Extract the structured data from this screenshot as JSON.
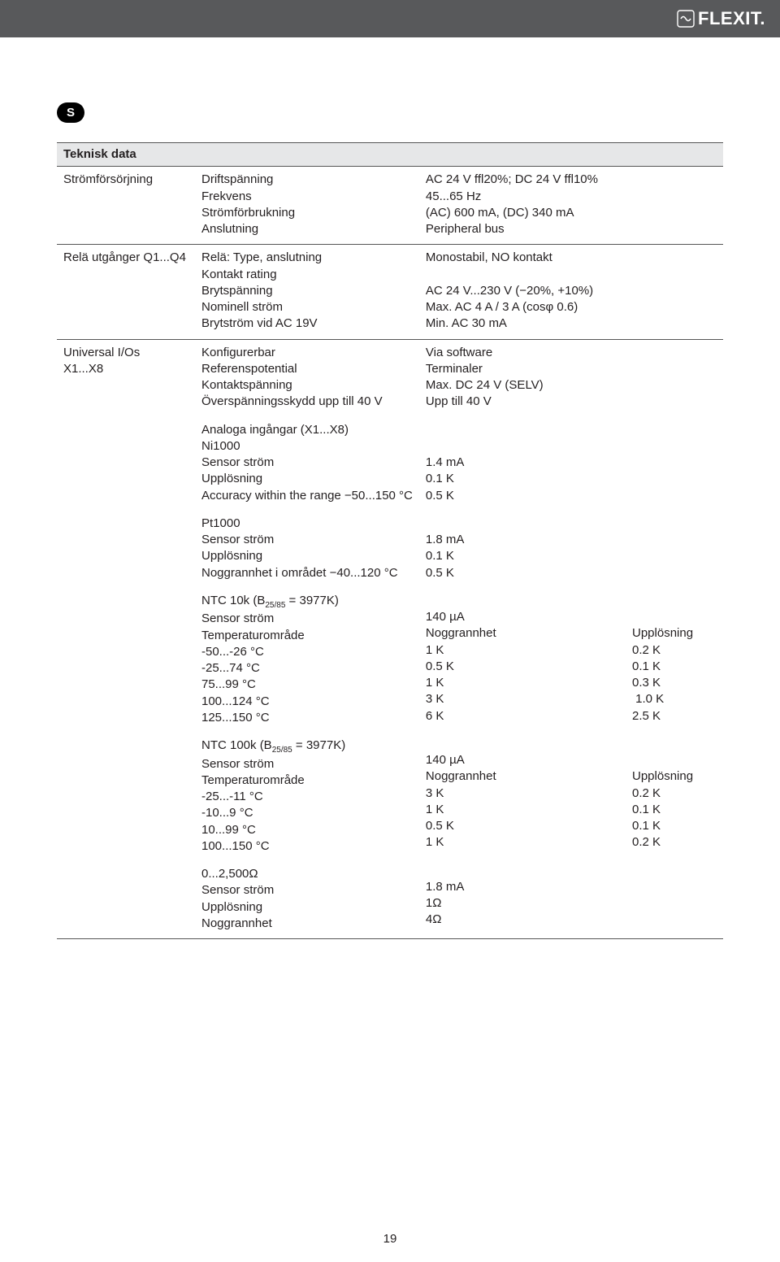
{
  "header": {
    "logo_text": "FLEXIT."
  },
  "section_badge": "S",
  "table": {
    "title": "Teknisk data",
    "rows": [
      {
        "col1": [
          "Strömförsörjning"
        ],
        "col2": [
          "Driftspänning",
          "Frekvens",
          "Strömförbrukning",
          "Anslutning"
        ],
        "col3": [
          "AC 24 V ffl20%; DC 24 V ffl10%",
          "45...65 Hz",
          "(AC) 600 mA, (DC) 340 mA",
          "Peripheral bus"
        ],
        "col4": []
      },
      {
        "col1": [
          "Relä utgånger Q1...Q4"
        ],
        "col2": [
          "Relä: Type, anslutning",
          "Kontakt rating",
          "Brytspänning",
          "Nominell ström",
          "Brytström vid AC 19V"
        ],
        "col3": [
          "Monostabil, NO kontakt",
          "",
          "AC 24 V...230 V (−20%, +10%)",
          "Max. AC 4 A / 3 A (cosφ 0.6)",
          "Min. AC 30 mA"
        ],
        "col4": []
      },
      {
        "col1": [
          "Universal I/Os",
          "X1...X8"
        ],
        "blocks": [
          {
            "col2": [
              "Konfigurerbar",
              "Referenspotential",
              "Kontaktspänning",
              "Överspänningsskydd upp till 40 V"
            ],
            "col3": [
              "Via software",
              "Terminaler",
              "Max. DC 24 V (SELV)",
              "Upp till 40 V"
            ],
            "col4": []
          },
          {
            "col2": [
              "Analoga ingångar (X1...X8)",
              "Ni1000",
              "Sensor ström",
              "Upplösning",
              "Accuracy within the range −50...150 °C"
            ],
            "col3": [
              "",
              "",
              "1.4 mA",
              "0.1 K",
              "0.5 K"
            ],
            "col4": []
          },
          {
            "col2": [
              "Pt1000",
              "Sensor ström",
              "Upplösning",
              "Noggrannhet i området −40...120 °C"
            ],
            "col3": [
              "",
              "1.8 mA",
              "0.1 K",
              "0.5 K"
            ],
            "col4": []
          },
          {
            "col2": [
              "NTC 10k (B₍25/85₎ = 3977K)",
              "Sensor ström",
              "Temperaturområde",
              "-50...-26 °C",
              "-25...74 °C",
              "75...99 °C",
              "100...124 °C",
              "125...150 °C"
            ],
            "col3": [
              "",
              "140 µA",
              "Noggrannhet",
              "1 K",
              "0.5 K",
              "1 K",
              "3 K",
              "6 K"
            ],
            "col4": [
              "",
              "",
              "Upplösning",
              "0.2 K",
              "0.1 K",
              "0.3 K",
              " 1.0 K",
              "2.5 K"
            ]
          },
          {
            "col2": [
              "NTC 100k (B₍25/85₎ = 3977K)",
              "Sensor ström",
              "Temperaturområde",
              "-25...-11 °C",
              "-10...9 °C",
              "10...99 °C",
              "100...150 °C"
            ],
            "col3": [
              "",
              "140 µA",
              "Noggrannhet",
              "3 K",
              "1 K",
              "0.5 K",
              "1 K"
            ],
            "col4": [
              "",
              "",
              "Upplösning",
              "0.2 K",
              "0.1 K",
              "0.1 K",
              "0.2 K"
            ]
          },
          {
            "col2": [
              "0...2,500Ω",
              "Sensor ström",
              "Upplösning",
              "Noggrannhet"
            ],
            "col3": [
              "",
              "1.8 mA",
              "1Ω",
              "4Ω"
            ],
            "col4": []
          }
        ]
      }
    ]
  },
  "page_number": "19",
  "colors": {
    "header_bg": "#58595b",
    "row_bg": "#e6e7e8",
    "border": "#555555",
    "text": "#231f20"
  }
}
